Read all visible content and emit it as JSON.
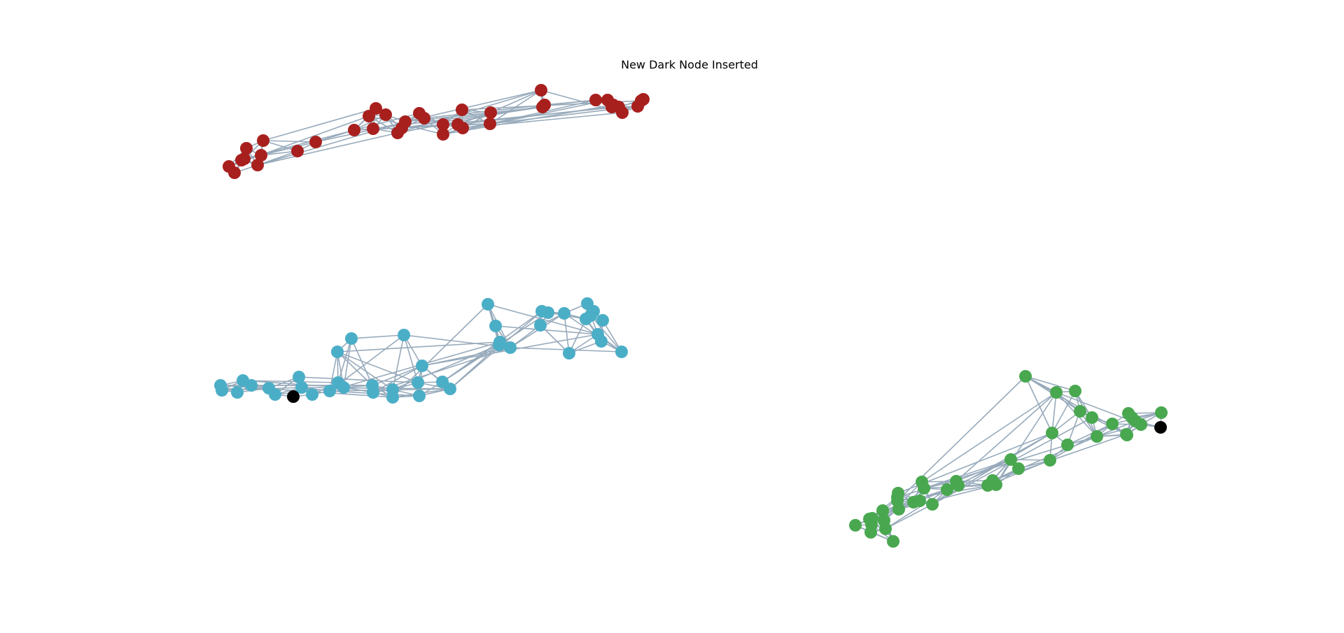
{
  "figure": {
    "title": "New Dark Node Inserted"
  },
  "colors": {
    "edge": "#97aabb",
    "cluster_red": "#a8201e",
    "cluster_blue": "#4baec7",
    "cluster_green": "#49a84f",
    "inserted_node": "#000000"
  },
  "legend": []
}
